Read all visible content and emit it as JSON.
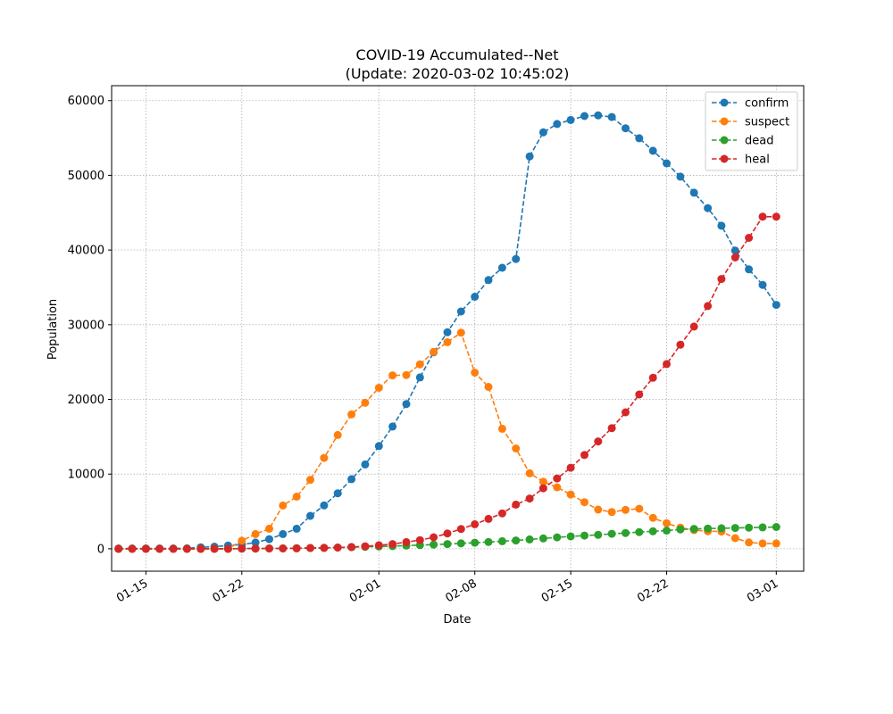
{
  "chart_data": {
    "type": "line",
    "title": "COVID-19 Accumulated--Net",
    "subtitle": "(Update: 2020-03-02 10:45:02)",
    "xlabel": "Date",
    "ylabel": "Population",
    "x_start": "2020-01-13",
    "x_end": "2020-03-01",
    "xlim": [
      "2020-01-12T12:00",
      "2020-03-03T00:00"
    ],
    "ylim": [
      -3000,
      62000
    ],
    "x_ticks": [
      {
        "date": "2020-01-15",
        "label": "01-15"
      },
      {
        "date": "2020-01-22",
        "label": "01-22"
      },
      {
        "date": "2020-02-01",
        "label": "02-01"
      },
      {
        "date": "2020-02-08",
        "label": "02-08"
      },
      {
        "date": "2020-02-15",
        "label": "02-15"
      },
      {
        "date": "2020-02-22",
        "label": "02-22"
      },
      {
        "date": "2020-03-01",
        "label": "03-01"
      }
    ],
    "y_ticks": [
      0,
      10000,
      20000,
      30000,
      40000,
      50000,
      60000
    ],
    "grid": true,
    "legend_position": "top-right",
    "series": [
      {
        "name": "confirm",
        "color": "#1f77b4",
        "values": [
          41,
          41,
          41,
          41,
          45,
          62,
          198,
          291,
          440,
          571,
          830,
          1287,
          1975,
          2684,
          4409,
          5806,
          7427,
          9320,
          11289,
          13748,
          16369,
          19381,
          22942,
          26302,
          28985,
          31774,
          33738,
          35982,
          37626,
          38800,
          52526,
          55748,
          56873,
          57416,
          57934,
          58016,
          57805,
          56303,
          54965,
          53284,
          51606,
          49824,
          47672,
          45604,
          43258,
          39919,
          37414,
          35329,
          32652
        ],
        "type_note": "dashed line with circle markers"
      },
      {
        "name": "suspect",
        "color": "#ff7f0e",
        "values": [
          0,
          0,
          0,
          0,
          0,
          0,
          0,
          0,
          0,
          1072,
          1965,
          2684,
          5794,
          6973,
          9239,
          12167,
          15238,
          17988,
          19544,
          21558,
          23214,
          23260,
          24702,
          26359,
          27657,
          28942,
          23589,
          21675,
          16067,
          13435,
          10109,
          8969,
          8228,
          7264,
          6242,
          5248,
          4922,
          5206,
          5365,
          4148,
          3434,
          2824,
          2491,
          2358,
          2308,
          1418,
          851,
          715,
          715
        ]
      },
      {
        "name": "dead",
        "color": "#2ca02c",
        "values": [
          1,
          1,
          1,
          1,
          2,
          3,
          4,
          6,
          9,
          17,
          25,
          41,
          56,
          80,
          106,
          132,
          170,
          213,
          259,
          304,
          361,
          425,
          490,
          563,
          636,
          722,
          811,
          908,
          1016,
          1113,
          1259,
          1380,
          1523,
          1665,
          1770,
          1868,
          2004,
          2118,
          2236,
          2345,
          2442,
          2592,
          2663,
          2715,
          2744,
          2788,
          2835,
          2870,
          2912
        ]
      },
      {
        "name": "heal",
        "color": "#d62728",
        "values": [
          0,
          0,
          0,
          0,
          0,
          0,
          0,
          0,
          0,
          34,
          38,
          49,
          51,
          60,
          103,
          124,
          171,
          243,
          328,
          475,
          632,
          892,
          1153,
          1540,
          2050,
          2649,
          3281,
          3996,
          4740,
          5911,
          6723,
          8096,
          9419,
          10844,
          12552,
          14376,
          16155,
          18264,
          20659,
          22888,
          24734,
          27323,
          29745,
          32495,
          36117,
          39002,
          41625,
          44462,
          44462
        ]
      }
    ]
  }
}
